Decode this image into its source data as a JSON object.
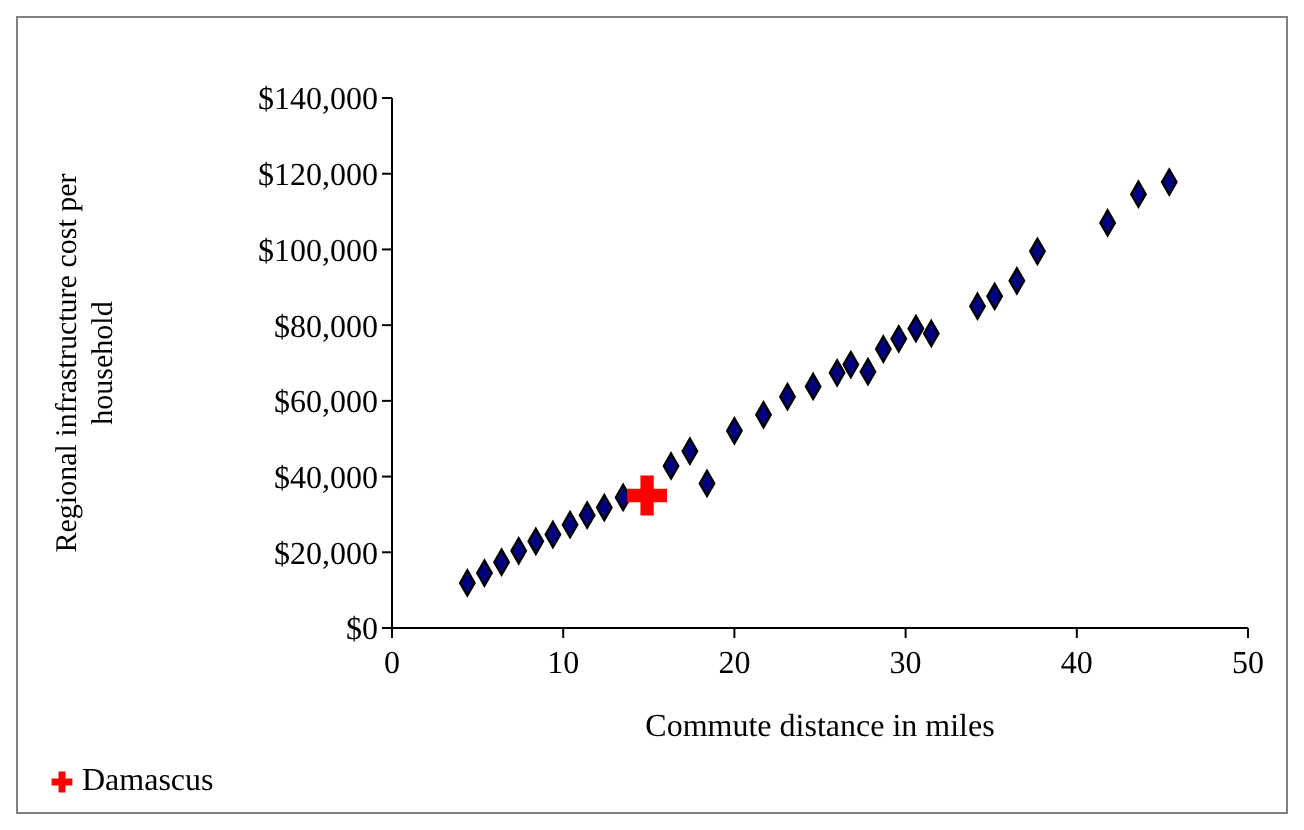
{
  "chart_data": {
    "type": "scatter",
    "xlabel": "Commute distance in miles",
    "ylabel": "Regional infrastructure cost per household",
    "xlim": [
      0,
      50
    ],
    "xticks": [
      0,
      10,
      20,
      30,
      40,
      50
    ],
    "ylim": [
      0,
      140000
    ],
    "yticks": [
      {
        "value": 0,
        "label": "$0"
      },
      {
        "value": 20000,
        "label": "$20,000"
      },
      {
        "value": 40000,
        "label": "$40,000"
      },
      {
        "value": 60000,
        "label": "$60,000"
      },
      {
        "value": 80000,
        "label": "$80,000"
      },
      {
        "value": 100000,
        "label": "$100,000"
      },
      {
        "value": 120000,
        "label": "$120,000"
      },
      {
        "value": 140000,
        "label": "$140,000"
      }
    ],
    "grid": false,
    "legend": "bottom left",
    "series": [
      {
        "color": "#000080",
        "marker": "diamond",
        "x": [
          4.4,
          5.4,
          6.4,
          7.4,
          8.4,
          9.4,
          10.4,
          11.4,
          12.4,
          13.5,
          16.3,
          17.4,
          18.4,
          20.0,
          21.7,
          23.1,
          24.6,
          26.0,
          26.8,
          27.8,
          28.7,
          29.6,
          30.6,
          31.5,
          34.2,
          35.2,
          36.5,
          37.7,
          41.8,
          43.6,
          45.4
        ],
        "values": [
          11900,
          14500,
          17400,
          20400,
          22900,
          24700,
          27300,
          29800,
          31800,
          34500,
          42800,
          46700,
          38200,
          52100,
          56300,
          61100,
          63800,
          67400,
          69600,
          67700,
          73700,
          76400,
          79100,
          77800,
          85000,
          87600,
          91700,
          99500,
          107000,
          114600,
          117800
        ]
      },
      {
        "name": "Damascus",
        "color": "#ff0000",
        "marker": "cross",
        "x": [
          14.9
        ],
        "values": [
          35000
        ]
      }
    ]
  }
}
